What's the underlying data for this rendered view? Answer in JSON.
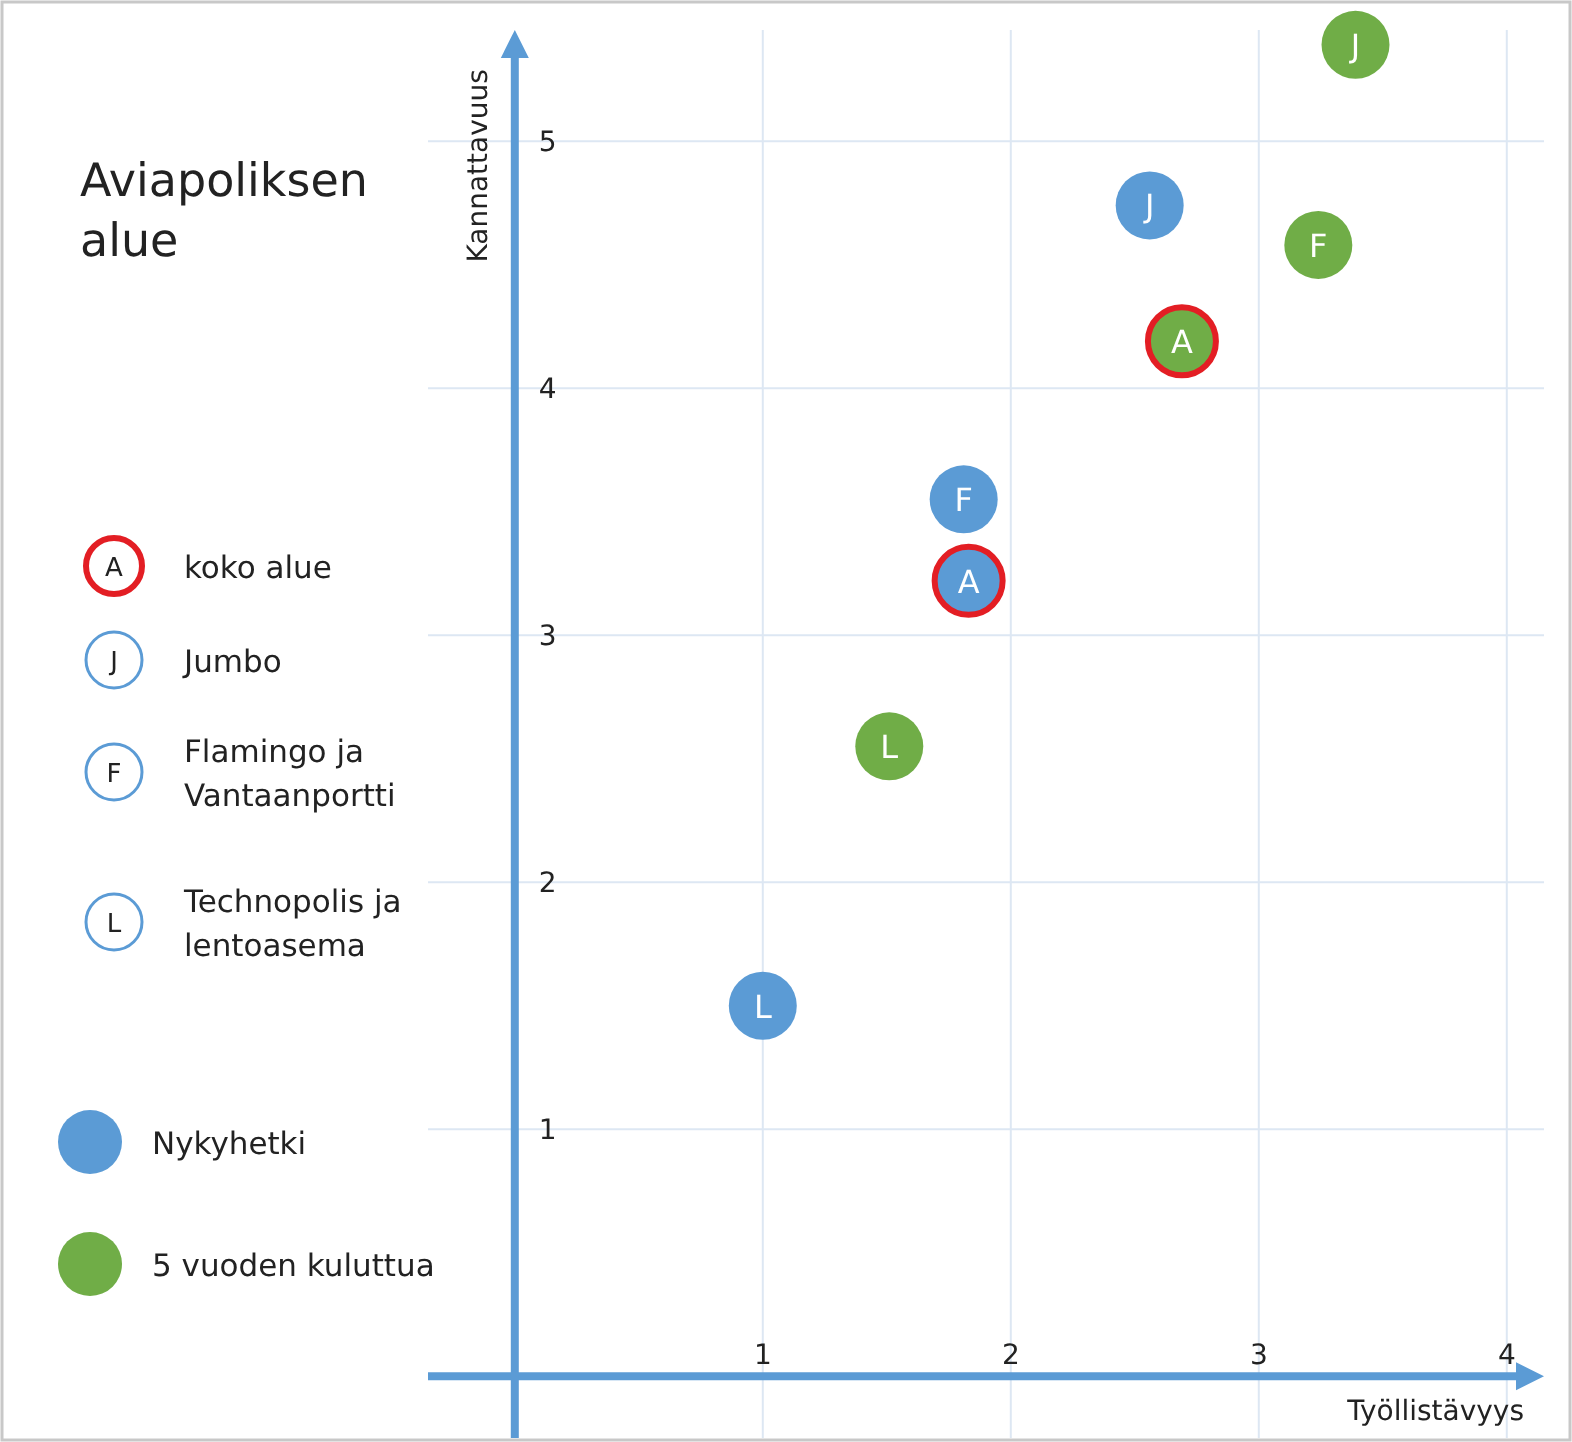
{
  "chart_data": {
    "type": "scatter",
    "title": "Aviapoliksen alue",
    "xlabel": "Työllistävyys",
    "ylabel": "Kannattavuus",
    "xlim": [
      -0.35,
      4.15
    ],
    "ylim": [
      -0.25,
      5.45
    ],
    "xticks": [
      1,
      2,
      3,
      4
    ],
    "yticks": [
      1,
      2,
      3,
      4,
      5
    ],
    "grid": true,
    "legend": "left",
    "marker": "circle",
    "annotations": [
      "A",
      "koko alue",
      "J",
      "Jumbo",
      "F",
      "Flamingo ja Vantaanportti",
      "L",
      "Technopolis ja lentoasema"
    ],
    "series": [
      {
        "name": "Nykyhetki",
        "color": "#5b9bd5",
        "x": [
          1.0,
          1.81,
          1.83,
          2.56
        ],
        "values": [
          1.5,
          3.55,
          3.22,
          4.74
        ],
        "value_labels": [
          "L",
          "F",
          "A",
          "J"
        ]
      },
      {
        "name": "5 vuoden kuluttua",
        "color": "#70ad47",
        "x": [
          1.51,
          2.69,
          3.24,
          3.39
        ],
        "values": [
          2.55,
          4.19,
          4.58,
          5.39
        ],
        "value_labels": [
          "L",
          "A",
          "F",
          "J"
        ]
      }
    ]
  }
}
